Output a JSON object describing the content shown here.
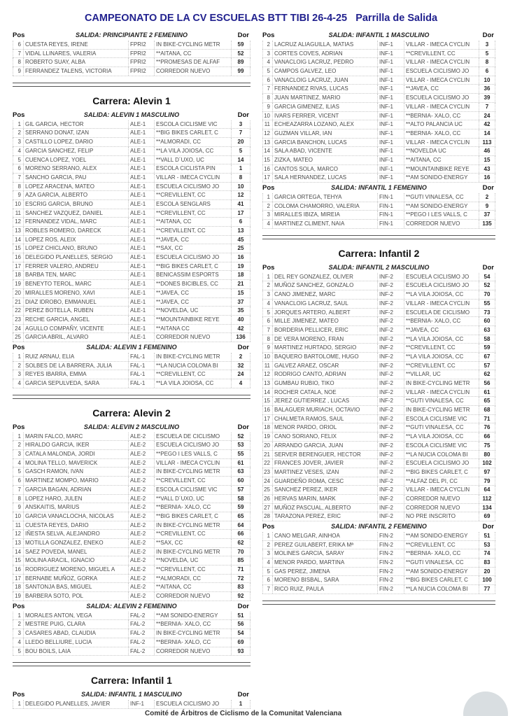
{
  "title": "CAMPEONATO DE LA CV ESCUELAS BTT TIBI 26-4-25   Parrilla de Salida",
  "labels": {
    "pos": "Pos",
    "dor": "Dor"
  },
  "footer": "Comité de Árbitros de Ciclismo de la Comunitat Valenciana",
  "colors": {
    "title": "#22228f",
    "fab": "#d9dee1"
  },
  "columns": [
    [
      {
        "type": "group",
        "salida": "SALIDA:  PRINCIPIANTE 2 FEMENINO",
        "rows": [
          [
            "6",
            "CUESTA REYES, IRENE",
            "FPRI2",
            "IN BIKE-CYCLING METR",
            "59"
          ],
          [
            "7",
            "VIDAL LLINARES, VALERIA",
            "FPRI2",
            "**AITANA, CC",
            "52"
          ],
          [
            "8",
            "ROBERTO SUAY, ALBA",
            "FPRI2",
            "**PROMESAS DE ALFAF",
            "89"
          ],
          [
            "9",
            "FERRANDEZ TALENS, VICTORIA",
            "FPRI2",
            "CORREDOR NUEVO",
            "99"
          ]
        ]
      },
      {
        "type": "sep"
      },
      {
        "type": "carrera",
        "text": "Carrera: Alevin 1"
      },
      {
        "type": "group",
        "salida": "SALIDA:  ALEVIN 1 MASCULINO",
        "rows": [
          [
            "1",
            "GIL GARCIA, HECTOR",
            "ALE-1",
            "ESCOLA CICLISME VIC",
            "3"
          ],
          [
            "2",
            "SERRANO DONAT, IZAN",
            "ALE-1",
            "**BIG BIKES CARLET, C",
            "7"
          ],
          [
            "3",
            "CASTILLO LOPEZ, DARIO",
            "ALE-1",
            "**ALMORADI, CC",
            "20"
          ],
          [
            "4",
            "GARCIA SANCHEZ, FELIP",
            "ALE-1",
            "**LA VILA JOIOSA, CC",
            "5"
          ],
          [
            "5",
            "CUENCA LOPEZ, YOEL",
            "ALE-1",
            "**VALL D´UXO, UC",
            "14"
          ],
          [
            "6",
            "MORENO SERRANO, ALEX",
            "ALE-1",
            "ESCOLA  CICLISTA PIN",
            "1"
          ],
          [
            "7",
            "SANCHO GARCIA, PAU",
            "ALE-1",
            "VILLAR - IMECA CYCLIN",
            "8"
          ],
          [
            "8",
            "LOPEZ ARACENA, MATEO",
            "ALE-1",
            "ESCUELA CICLISMO JO",
            "10"
          ],
          [
            "9",
            "AZA GARCIA, ALBERTO",
            "ALE-1",
            "**CREVILLENT, CC",
            "12"
          ],
          [
            "10",
            "ESCRIG GARCIA, BRUNO",
            "ALE-1",
            "ESCOLA SENGLARS",
            "41"
          ],
          [
            "11",
            "SANCHEZ VAZQUEZ, DANIEL",
            "ALE-1",
            "**CREVILLENT, CC",
            "17"
          ],
          [
            "12",
            "FERNANDEZ VIDAL, MARC",
            "ALE-1",
            "**AITANA, CC",
            "6"
          ],
          [
            "13",
            "ROBLES ROMERO, DARECK",
            "ALE-1",
            "**CREVILLENT, CC",
            "13"
          ],
          [
            "14",
            "LOPEZ ROS, ALEIX",
            "ALE-1",
            "**JAVEA, CC",
            "45"
          ],
          [
            "15",
            "LOPEZ CHICLANO, BRUNO",
            "ALE-1",
            "**SAX, CC",
            "25"
          ],
          [
            "16",
            "DELEGIDO PLANELLES, SERGIO",
            "ALE-1",
            "ESCUELA CICLISMO JO",
            "16"
          ],
          [
            "17",
            "FERRER VALERO, ANDREU",
            "ALE-1",
            "**BIG BIKES CARLET, C",
            "19"
          ],
          [
            "18",
            "BARBA TEN, MARC",
            "ALE-1",
            "BENICASSIM ESPORTS",
            "18"
          ],
          [
            "19",
            "BENEYTO TEROL, MARC",
            "ALE-1",
            "**DONES BICIBLES, CC",
            "21"
          ],
          [
            "20",
            "MIRALLES MORENO, XAVI",
            "ALE-1",
            "**JAVEA, CC",
            "15"
          ],
          [
            "21",
            "DIAZ IDROBO, EMMANUEL",
            "ALE-1",
            "**JAVEA, CC",
            "37"
          ],
          [
            "22",
            "PEREZ BOTELLA, RUBEN",
            "ALE-1",
            "**NOVELDA, UC",
            "35"
          ],
          [
            "23",
            "RECHE GARCIA, ANGEL",
            "ALE-1",
            "**MOUNTAINBIKE REYE",
            "40"
          ],
          [
            "24",
            "AGULLO COMPAÑY, VICENTE",
            "ALE-1",
            "**AITANA CC",
            "42"
          ],
          [
            "25",
            "GARCIA ABRIL, ALVARO",
            "ALE-1",
            "CORREDOR NUEVO",
            "136"
          ]
        ]
      },
      {
        "type": "group",
        "salida": "SALIDA:  ALEVIN 1 FEMENINO",
        "rows": [
          [
            "1",
            "RUIZ ARNAU, ELIA",
            "FAL-1",
            "IN BIKE-CYCLING METR",
            "2"
          ],
          [
            "2",
            "SOLBES DE LA BARRERA, JULIA",
            "FAL-1",
            "**LA NUCIA COLOMA BI",
            "32"
          ],
          [
            "3",
            "REYES IBARRA, EMMA",
            "FAL-1",
            "**CREVILLENT, CC",
            "24"
          ],
          [
            "4",
            "GARCIA SEPULVEDA, SARA",
            "FAL-1",
            "**LA VILA JOIOSA, CC",
            "4"
          ]
        ]
      },
      {
        "type": "sep"
      },
      {
        "type": "carrera",
        "text": "Carrera: Alevin 2"
      },
      {
        "type": "group",
        "salida": "SALIDA:  ALEVIN 2 MASCULINO",
        "rows": [
          [
            "1",
            "MARIN FALCO, MARC",
            "ALE-2",
            "ESCUELA DE CICLISMO",
            "52"
          ],
          [
            "2",
            "HIRALDO GARCIA, IKER",
            "ALE-2",
            "ESCUELA CICLISMO JO",
            "53"
          ],
          [
            "3",
            "CATALA MALONDA, JORDI",
            "ALE-2",
            "**PEGO I LES VALLS, C",
            "55"
          ],
          [
            "4",
            "MOLINA TELLO, MAVERICK",
            "ALE-2",
            "VILLAR - IMECA CYCLIN",
            "61"
          ],
          [
            "5",
            "GASCH RAMON, IVAN",
            "ALE-2",
            "IN BIKE-CYCLING METR",
            "63"
          ],
          [
            "6",
            "MARTINEZ MOMPO, MARIO",
            "ALE-2",
            "**CREVILLENT, CC",
            "60"
          ],
          [
            "7",
            "GARCIA BAGAN, ADRIAN",
            "ALE-2",
            "ESCOLA CICLISME VIC",
            "57"
          ],
          [
            "8",
            "LOPEZ HARO, JULEN",
            "ALE-2",
            "**VALL D´UXO, UC",
            "58"
          ],
          [
            "9",
            "ANSKAITIS, MARIUS",
            "ALE-2",
            "**BERNIA- XALO, CC",
            "59"
          ],
          [
            "10",
            "GARCIA VANACLOCHA, NICOLAS",
            "ALE-2",
            "**BIG BIKES CARLET, C",
            "65"
          ],
          [
            "11",
            "CUESTA REYES, DARIO",
            "ALE-2",
            "IN BIKE-CYCLING METR",
            "64"
          ],
          [
            "12",
            "IÑESTA SELVA, ALEJANDRO",
            "ALE-2",
            "**CREVILLENT, CC",
            "66"
          ],
          [
            "13",
            "MOTILLA GONZALEZ, ENEKO",
            "ALE-2",
            "**SAX, CC",
            "62"
          ],
          [
            "14",
            "SAEZ POVEDA, MANEL",
            "ALE-2",
            "IN BIKE-CYCLING METR",
            "70"
          ],
          [
            "15",
            "MOLINA ARACIL, IGNACIO",
            "ALE-2",
            "**NOVELDA, UC",
            "85"
          ],
          [
            "16",
            "RODRIGUEZ MORENO, MIGUEL A",
            "ALE-2",
            "**CREVILLENT, CC",
            "71"
          ],
          [
            "17",
            "BERNABE MUÑOZ, GORKA",
            "ALE-2",
            "**ALMORADI, CC",
            "72"
          ],
          [
            "18",
            "SANTONJA BAS, MIGUEL",
            "ALE-2",
            "**AITANA, CC",
            "83"
          ],
          [
            "19",
            "BARBERA SOTO, POL",
            "ALE-2",
            "CORREDOR NUEVO",
            "92"
          ]
        ]
      },
      {
        "type": "group",
        "salida": "SALIDA:  ALEVIN 2 FEMENINO",
        "rows": [
          [
            "1",
            "MORALES ANTON, VEGA",
            "FAL-2",
            "**AM SONIDO-ENERGY",
            "51"
          ],
          [
            "2",
            "MESTRE PUIG, CLARA",
            "FAL-2",
            "**BERNIA- XALO, CC",
            "56"
          ],
          [
            "3",
            "CASARES ABAD, CLAUDIA",
            "FAL-2",
            "IN BIKE-CYCLING METR",
            "54"
          ],
          [
            "4",
            "LLEDO BELLIURE, LUCIA",
            "FAL-2",
            "**BERNIA- XALO, CC",
            "69"
          ],
          [
            "5",
            "BOU BOILS, LAIA",
            "FAL-2",
            "CORREDOR NUEVO",
            "93"
          ]
        ]
      },
      {
        "type": "sep"
      },
      {
        "type": "carrera",
        "text": "Carrera: Infantil 1"
      },
      {
        "type": "group",
        "salida": "SALIDA:  INFANTIL 1 MASCULINO",
        "rows": [
          [
            "1",
            "DELEGIDO PLANELLES, JAVIER",
            "INF-1",
            "ESCUELA CICLISMO JO",
            "1"
          ]
        ]
      }
    ],
    [
      {
        "type": "group",
        "salida": "SALIDA:  INFANTIL 1 MASCULINO",
        "rows": [
          [
            "2",
            "LACRUZ ALIAGUILLA, MATIAS",
            "INF-1",
            "VILLAR - IMECA CYCLIN",
            "3"
          ],
          [
            "3",
            "CORTES COVES, ADRIAN",
            "INF-1",
            "**CREVILLENT, CC",
            "5"
          ],
          [
            "4",
            "VANACLOIG LACRUZ, PEDRO",
            "INF-1",
            "VILLAR - IMECA CYCLIN",
            "8"
          ],
          [
            "5",
            "CAMPOS GALVEZ, LEO",
            "INF-1",
            "ESCUELA CICLISMO JO",
            "6"
          ],
          [
            "6",
            "VANACLOIG LACRUZ, JUAN",
            "INF-1",
            "VILLAR - IMECA CYCLIN",
            "10"
          ],
          [
            "7",
            "FERNANDEZ RIVAS, LUCAS",
            "INF-1",
            "**JAVEA, CC",
            "36"
          ],
          [
            "8",
            "JUAN MARTINEZ, MARIO",
            "INF-1",
            "ESCUELA CICLISMO JO",
            "39"
          ],
          [
            "9",
            "GARCIA GIMENEZ, ILIAS",
            "INF-1",
            "VILLAR - IMECA CYCLIN",
            "7"
          ],
          [
            "10",
            "IVARS FERRER, VICENT",
            "INF-1",
            "**BERNIA- XALO, CC",
            "24"
          ],
          [
            "11",
            "ECHEAZARRA LOZANO, ALEX",
            "INF-1",
            "**ALTO PALANCIA UC",
            "42"
          ],
          [
            "12",
            "GUZMAN VILLAR, IAN",
            "INF-1",
            "**BERNIA- XALO, CC",
            "14"
          ],
          [
            "13",
            "GARCIA BANCHON, LUCAS",
            "INF-1",
            "VILLAR - IMECA CYCLIN",
            "113"
          ],
          [
            "14",
            "SALA ABAD, VICENTE",
            "INF-1",
            "**NOVELDA UC",
            "46"
          ],
          [
            "15",
            "ZIZKA, MATEO",
            "INF-1",
            "**AITANA, CC",
            "15"
          ],
          [
            "16",
            "CANTOS SOLA, MARCO",
            "INF-1",
            "**MOUNTAINBIKE REYE",
            "43"
          ],
          [
            "17",
            "SALA HERNANDEZ, LUCAS",
            "INF-1",
            "**AM SONIDO-ENERGY",
            "16"
          ]
        ]
      },
      {
        "type": "group",
        "salida": "SALIDA:  INFANTIL 1 FEMENINO",
        "rows": [
          [
            "1",
            "GARCIA ORTEGA, TEHYA",
            "FIN-1",
            "**GUTI VINALESA, CC",
            "2"
          ],
          [
            "2",
            "COLOMA CHAMORRO, VALERIA",
            "FIN-1",
            "**AM SONIDO-ENERGY",
            "9"
          ],
          [
            "3",
            "MIRALLES IBIZA, MIREIA",
            "FIN-1",
            "**PEGO I LES VALLS, C",
            "37"
          ],
          [
            "4",
            "MARTINEZ CLIMENT, NAIA",
            "FIN-1",
            "CORREDOR NUEVO",
            "135"
          ]
        ]
      },
      {
        "type": "sep"
      },
      {
        "type": "carrera",
        "text": "Carrera: Infantil 2"
      },
      {
        "type": "group",
        "salida": "SALIDA:  INFANTIL 2 MASCULINO",
        "rows": [
          [
            "1",
            "DEL REY GONZALEZ, OLIVER",
            "INF-2",
            "ESCUELA CICLISMO JO",
            "54"
          ],
          [
            "2",
            "MUÑOZ SANCHEZ, GONZALO",
            "INF-2",
            "ESCUELA CICLISMO JO",
            "52"
          ],
          [
            "3",
            "CANO JIMENEZ, MARC",
            "INF-2",
            "**LA VILA JOIOSA, CC",
            "70"
          ],
          [
            "4",
            "VANACLOIG LACRUZ, SAUL",
            "INF-2",
            "VILLAR - IMECA CYCLIN",
            "55"
          ],
          [
            "5",
            "JORQUES ARTERO, ALBERT",
            "INF-2",
            "ESCUELA DE CICLISMO",
            "73"
          ],
          [
            "6",
            "MILLE JIMENEZ, MATEO",
            "INF-2",
            "**BERNIA- XALO, CC",
            "60"
          ],
          [
            "7",
            "BORDERIA PELLICER, ERIC",
            "INF-2",
            "**JAVEA, CC",
            "63"
          ],
          [
            "8",
            "DE VERA MORENO, FRAN",
            "INF-2",
            "**LA VILA JOIOSA, CC",
            "58"
          ],
          [
            "9",
            "MARTINEZ HURTADO, SERGIO",
            "INF-2",
            "**CREVILLENT, CC",
            "59"
          ],
          [
            "10",
            "BAQUERO BARTOLOME, HUGO",
            "INF-2",
            "**LA VILA JOIOSA, CC",
            "67"
          ],
          [
            "11",
            "GALVEZ ARAEZ, OSCAR",
            "INF-2",
            "**CREVILLENT, CC",
            "57"
          ],
          [
            "12",
            "RODRIGO CANTO, ADRIAN",
            "INF-2",
            "**VILLAR, UC",
            "62"
          ],
          [
            "13",
            "GUMBAU RUBIO, TIKO",
            "INF-2",
            "IN BIKE-CYCLING METR",
            "56"
          ],
          [
            "14",
            "ROCHER CATALA, NOE",
            "INF-2",
            "VILLAR - IMECA CYCLIN",
            "61"
          ],
          [
            "15",
            "JEREZ GUTIERREZ , LUCAS",
            "INF-2",
            "**GUTI VINALESA, CC",
            "65"
          ],
          [
            "16",
            "BALAGUER MURIACH, OCTAVIO",
            "INF-2",
            "IN BIKE-CYCLING METR",
            "68"
          ],
          [
            "17",
            "CHALMETA RAMOS, SAUL",
            "INF-2",
            "ESCOLA CICLISME VIC",
            "71"
          ],
          [
            "18",
            "MENOR PARDO, ORIOL",
            "INF-2",
            "**GUTI VINALESA, CC",
            "76"
          ],
          [
            "19",
            "CANO SORIANO, FELIX",
            "INF-2",
            "**LA VILA JOIOSA, CC",
            "66"
          ],
          [
            "20",
            "ARRANDO GARCIA, JUAN",
            "INF-2",
            "ESCOLA CICLISME VIC",
            "75"
          ],
          [
            "21",
            "SERVER BERENGUER, HECTOR",
            "INF-2",
            "**LA NUCIA COLOMA BI",
            "80"
          ],
          [
            "22",
            "FRANCES JOVER, JAVIER",
            "INF-2",
            "ESCUELA CICLISMO JO",
            "102"
          ],
          [
            "23",
            "MARTINEZ VESES, IZAN",
            "INF-2",
            "**BIG BIKES CARLET, C",
            "97"
          ],
          [
            "24",
            "GUARDEÑO ROMA, CESC",
            "INF-2",
            "**ALFAZ DEL PI, CC",
            "79"
          ],
          [
            "25",
            "SANCHEZ PEREZ, IKER",
            "INF-2",
            "VILLAR - IMECA CYCLIN",
            "64"
          ],
          [
            "26",
            "HERVAS MARIN, MARK",
            "INF-2",
            "CORREDOR NUEVO",
            "112"
          ],
          [
            "27",
            "MUÑOZ PASCUAL, ALBERTO",
            "INF-2",
            "CORREDOR NUEVO",
            "134"
          ],
          [
            "28",
            "TARAZONA PEREZ, ERIC",
            "INF-2",
            "NO PRE INSCRITO",
            "69"
          ]
        ]
      },
      {
        "type": "group",
        "salida": "SALIDA:  INFANTIL 2 FEMENINO",
        "rows": [
          [
            "1",
            "CANO MELGAR, AINHOA",
            "FIN-2",
            "**AM SONIDO-ENERGY",
            "51"
          ],
          [
            "2",
            "PEREZ GUILABERT, ERIKA Mª",
            "FIN-2",
            "**CREVILLENT, CC",
            "53"
          ],
          [
            "3",
            "MOLINES GARCIA, SARAY",
            "FIN-2",
            "**BERNIA- XALO, CC",
            "74"
          ],
          [
            "4",
            "MENOR PARDO, MARTINA",
            "FIN-2",
            "**GUTI VINALESA, CC",
            "83"
          ],
          [
            "5",
            "GAS PEREZ, JIMENA",
            "FIN-2",
            "**AM SONIDO-ENERGY",
            "20"
          ],
          [
            "6",
            "MORENO BISBAL, SARA",
            "FIN-2",
            "**BIG BIKES CARLET, C",
            "100"
          ],
          [
            "7",
            "RICO RUIZ, PAULA",
            "FIN-2",
            "**LA NUCIA COLOMA BI",
            "77"
          ]
        ]
      },
      {
        "type": "sep"
      }
    ]
  ]
}
